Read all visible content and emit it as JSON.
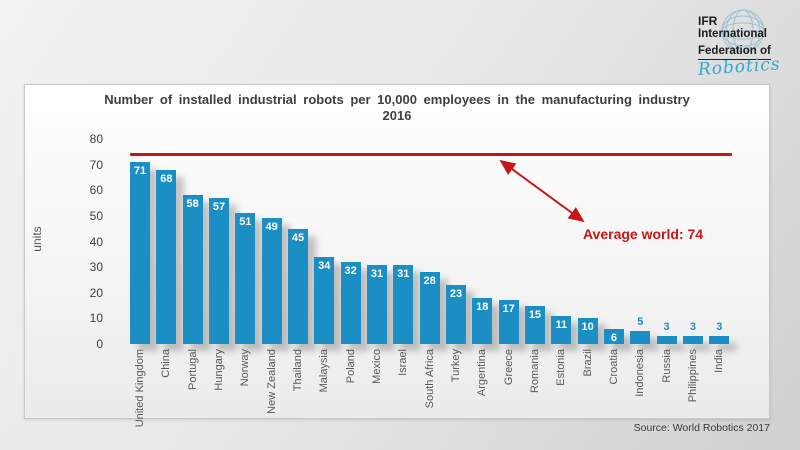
{
  "logo": {
    "line1": "IFR",
    "line2": "International",
    "line3": "Federation of",
    "script": "Robotics",
    "accent": "#35a7c9",
    "icon": "globe-icon"
  },
  "chart_data": {
    "type": "bar",
    "title": "Number of installed industrial robots per 10,000 employees in the manufacturing industry 2016",
    "ylabel": "units",
    "ylim": [
      0,
      80
    ],
    "yticks": [
      0,
      10,
      20,
      30,
      40,
      50,
      60,
      70,
      80
    ],
    "grid": false,
    "categories": [
      "United Kingdom",
      "China",
      "Portugal",
      "Hungary",
      "Norway",
      "New Zealand",
      "Thailand",
      "Malaysia",
      "Poland",
      "Mexico",
      "Israel",
      "South Africa",
      "Turkey",
      "Argentina",
      "Greece",
      "Romania",
      "Estonia",
      "Brazil",
      "Croatia",
      "Indonesia",
      "Russia",
      "Philippines",
      "India"
    ],
    "values": [
      71,
      68,
      58,
      57,
      51,
      49,
      45,
      34,
      32,
      31,
      31,
      28,
      23,
      18,
      17,
      15,
      11,
      10,
      6,
      5,
      3,
      3,
      3
    ],
    "bar_color": "#1b8ec3",
    "value_label_outside_threshold": 6,
    "average_line": {
      "value": 74,
      "label": "Average world: 74",
      "color": "#c81616"
    }
  },
  "source": "Source: World Robotics 2017"
}
